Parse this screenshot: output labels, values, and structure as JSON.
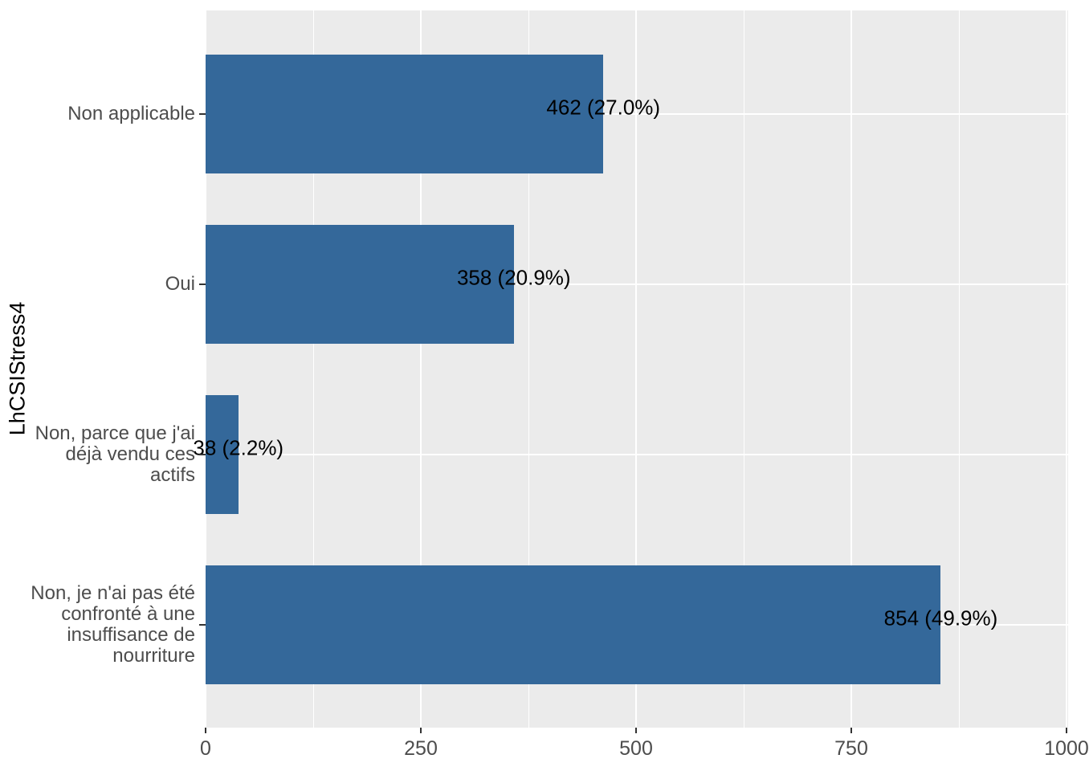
{
  "chart_data": {
    "type": "bar",
    "orientation": "horizontal",
    "title": "",
    "xlabel": "",
    "ylabel": "LhCSIStress4",
    "categories": [
      "Non applicable",
      "Oui",
      "Non, parce que j'ai déjà vendu ces actifs",
      "Non, je n'ai pas été confronté à une insuffisance de nourriture"
    ],
    "category_display": [
      "Non applicable",
      "Oui",
      "Non, parce que j'ai\ndéjà vendu ces\nactifs",
      "Non, je n'ai pas été\nconfronté à une\ninsuffisance de\nnourriture"
    ],
    "values": [
      462,
      358,
      38,
      854
    ],
    "percentages": [
      27.0,
      20.9,
      2.2,
      49.9
    ],
    "bar_labels": [
      "462 (27.0%)",
      "358 (20.9%)",
      "38 (2.2%)",
      "854 (49.9%)"
    ],
    "x_tick_labels": [
      "0",
      "250",
      "500",
      "750",
      "1000"
    ],
    "x_tick_values": [
      0,
      250,
      500,
      750,
      1000
    ],
    "x_minor_values": [
      125,
      375,
      625,
      875
    ],
    "xlim": [
      0,
      1002
    ],
    "legend": "none",
    "grid": "white major and minor vertical lines, white major horizontal lines on grey panel",
    "colors": {
      "bar": "#34689A",
      "panel_bg": "#EBEBEB",
      "grid": "#FFFFFF",
      "axis_text": "#4D4D4D",
      "tick_mark": "#333333",
      "bar_label_text": "#000000",
      "axis_title_text": "#000000",
      "background": "#FFFFFF"
    }
  }
}
